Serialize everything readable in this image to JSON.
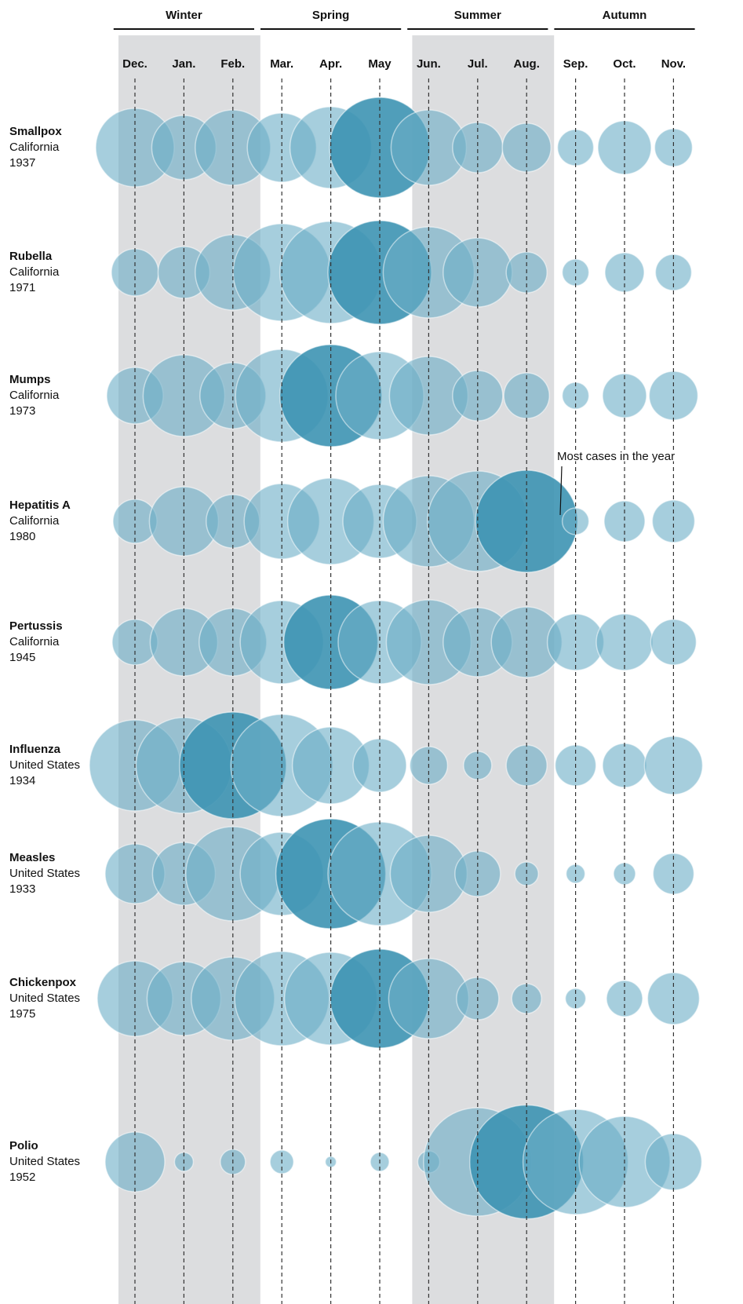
{
  "chart_data": {
    "type": "bubble",
    "seasons": [
      {
        "name": "Winter",
        "months": 3
      },
      {
        "name": "Spring",
        "months": 3
      },
      {
        "name": "Summer",
        "months": 3
      },
      {
        "name": "Autumn",
        "months": 3
      }
    ],
    "shaded_seasons": [
      "Winter",
      "Summer"
    ],
    "categories": [
      "Dec.",
      "Jan.",
      "Feb.",
      "Mar.",
      "Apr.",
      "May",
      "Jun.",
      "Jul.",
      "Aug.",
      "Sep.",
      "Oct.",
      "Nov."
    ],
    "color": "#6badc6",
    "peak_color": "#3d93b2",
    "annotation": "Most cases in the year",
    "series": [
      {
        "name": "Smallpox",
        "location": "California",
        "year": "1937",
        "values": [
          100,
          82,
          96,
          88,
          104,
          128,
          96,
          64,
          62,
          46,
          68,
          48
        ]
      },
      {
        "name": "Rubella",
        "location": "California",
        "year": "1971",
        "values": [
          60,
          66,
          96,
          124,
          130,
          132,
          116,
          88,
          52,
          34,
          50,
          46
        ]
      },
      {
        "name": "Mumps",
        "location": "California",
        "year": "1973",
        "values": [
          72,
          104,
          84,
          118,
          130,
          112,
          100,
          64,
          58,
          34,
          56,
          62
        ]
      },
      {
        "name": "Hepatitis A",
        "location": "California",
        "year": "1980",
        "values": [
          56,
          88,
          68,
          96,
          110,
          94,
          116,
          128,
          130,
          34,
          52,
          54
        ]
      },
      {
        "name": "Pertussis",
        "location": "California",
        "year": "1945",
        "values": [
          58,
          86,
          86,
          106,
          120,
          106,
          108,
          88,
          90,
          72,
          72,
          58
        ]
      },
      {
        "name": "Influenza",
        "location": "United States",
        "year": "1934",
        "values": [
          116,
          122,
          136,
          130,
          98,
          68,
          48,
          36,
          52,
          52,
          56,
          74
        ]
      },
      {
        "name": "Measles",
        "location": "United States",
        "year": "1933",
        "values": [
          76,
          80,
          120,
          106,
          140,
          132,
          98,
          58,
          30,
          24,
          28,
          52
        ]
      },
      {
        "name": "Chickenpox",
        "location": "United States",
        "year": "1975",
        "values": [
          96,
          94,
          106,
          120,
          118,
          126,
          102,
          54,
          38,
          26,
          46,
          66
        ]
      },
      {
        "name": "Polio",
        "location": "United States",
        "year": "1952",
        "values": [
          76,
          24,
          32,
          30,
          14,
          24,
          28,
          138,
          145,
          134,
          116,
          72
        ]
      }
    ]
  }
}
